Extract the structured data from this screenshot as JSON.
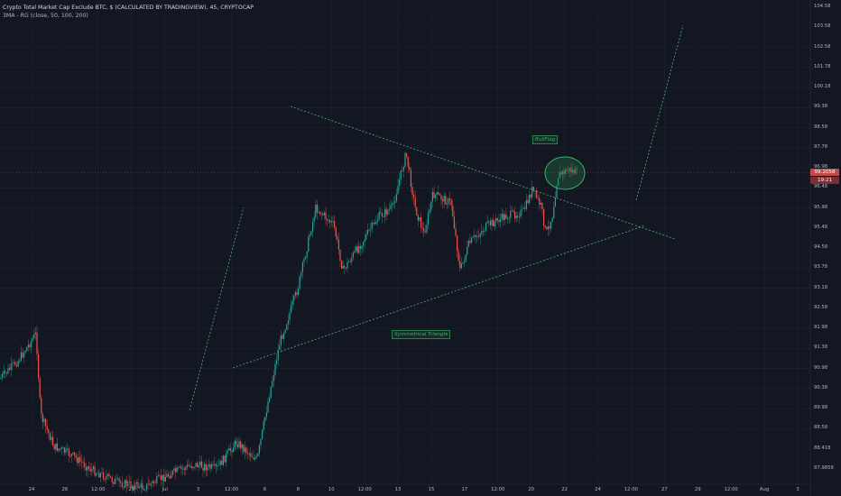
{
  "header": {
    "title": "Crypto Total Market Cap Exclude BTC, $ (CALCULATED BY TRADINGVIEW), 45, CRYPTOCAP",
    "indicator": "3MA - RG (close, 50, 100, 200)"
  },
  "price_axis": {
    "labels": [
      "104.58",
      "103.58",
      "102.58",
      "101.78",
      "100.18",
      "99.38",
      "98.58",
      "97.78",
      "96.98",
      "96.48",
      "95.98",
      "95.48",
      "94.58",
      "93.78",
      "93.18",
      "92.58",
      "91.98",
      "91.38",
      "90.98",
      "90.38",
      "89.98",
      "88.58",
      "88.418",
      "87.9858"
    ],
    "current_price": "99.2058",
    "countdown": "19:21"
  },
  "time_axis": {
    "labels": [
      "24",
      "26",
      "12:00",
      "29",
      "Jul",
      "3",
      "12:00",
      "6",
      "8",
      "10",
      "12:00",
      "13",
      "15",
      "17",
      "12:00",
      "20",
      "22",
      "24",
      "12:00",
      "27",
      "29",
      "12:00",
      "Aug",
      "3"
    ]
  },
  "annotations": {
    "bull_flag": "BullFlag",
    "triangle": "Symmetrical Triangle"
  },
  "colors": {
    "background": "#131722",
    "grid": "#1e2230",
    "up": "#26a69a",
    "down": "#ef5350",
    "trendline": "#4caf7a",
    "price_tag": "#c04a4a"
  }
}
